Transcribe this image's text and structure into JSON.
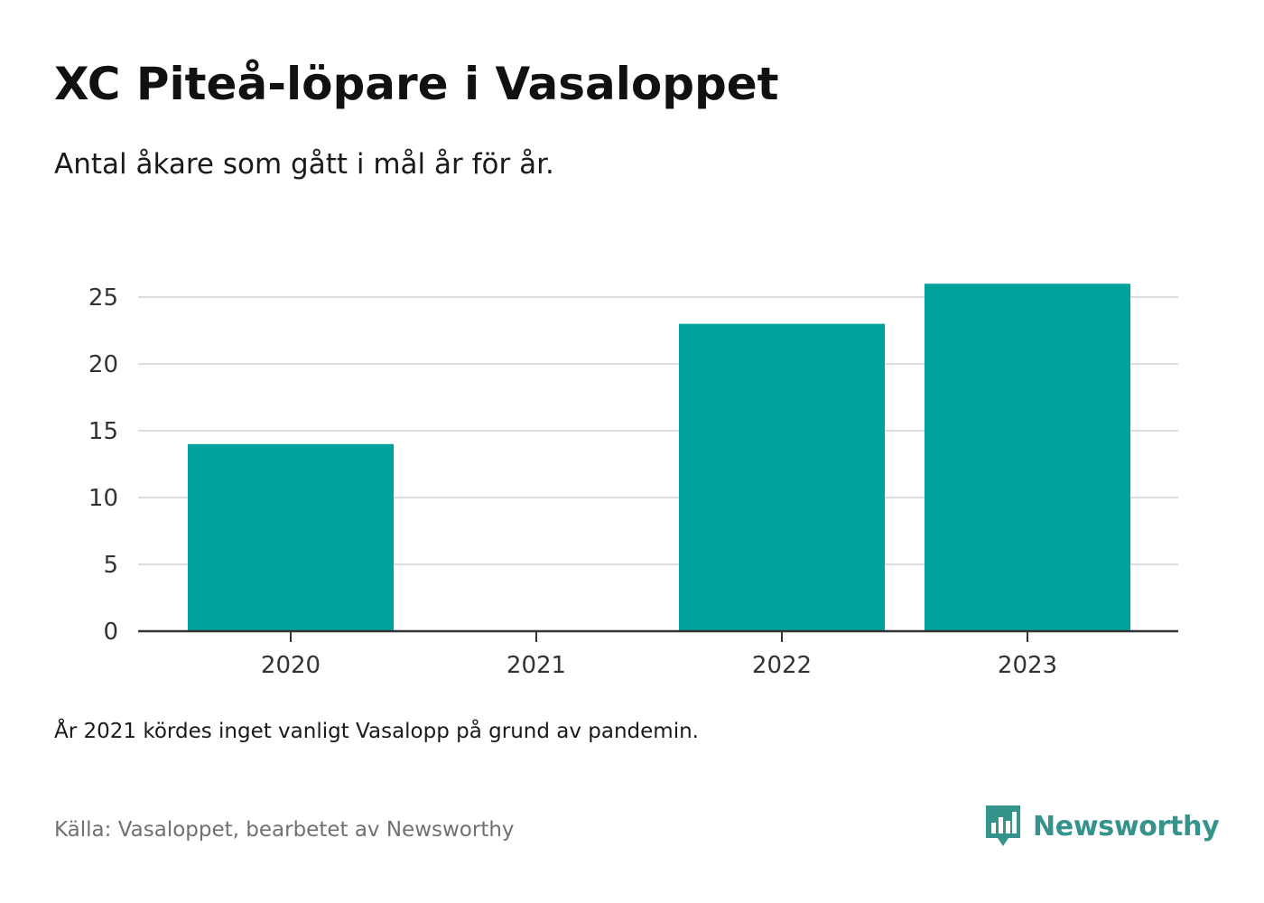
{
  "header": {
    "title": "XC Piteå-löpare i Vasaloppet",
    "subtitle": "Antal åkare som gått i mål år för år."
  },
  "chart_data": {
    "type": "bar",
    "categories": [
      "2020",
      "2021",
      "2022",
      "2023"
    ],
    "values": [
      14,
      0,
      23,
      26
    ],
    "ylim": [
      0,
      26
    ],
    "yticks": [
      0,
      5,
      10,
      15,
      20,
      25
    ],
    "grid": true,
    "bar_color": "#00a39b"
  },
  "footer": {
    "note": "År 2021 kördes inget vanligt Vasalopp på grund av pandemin.",
    "source": "Källa: Vasaloppet, bearbetet av Newsworthy",
    "brand": "Newsworthy",
    "brand_color": "#34938a",
    "brand_icon": "newsworthy-logo-icon"
  }
}
